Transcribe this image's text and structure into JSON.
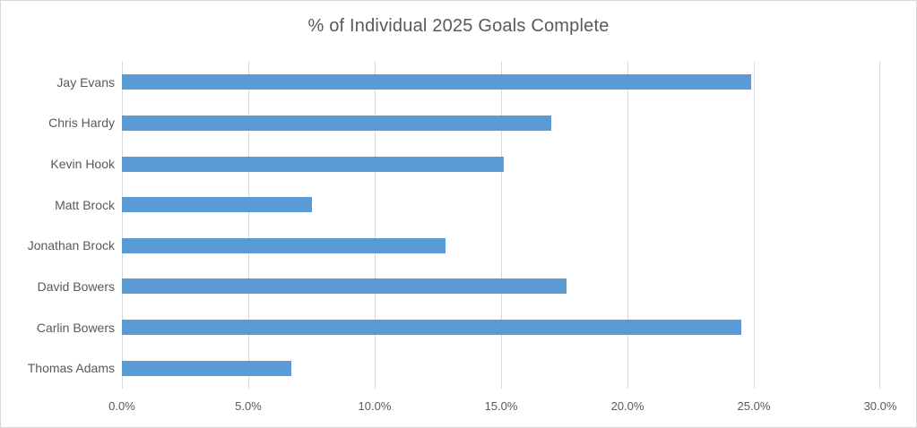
{
  "title": "% of Individual 2025 Goals Complete",
  "chart_data": {
    "type": "bar",
    "orientation": "horizontal",
    "title": "% of Individual 2025 Goals Complete",
    "categories": [
      "Jay Evans",
      "Chris Hardy",
      "Kevin Hook",
      "Matt Brock",
      "Jonathan Brock",
      "David Bowers",
      "Carlin Bowers",
      "Thomas Adams"
    ],
    "values": [
      24.9,
      17.0,
      15.1,
      7.5,
      12.8,
      17.6,
      24.5,
      6.7
    ],
    "value_unit": "%",
    "xlabel": "",
    "ylabel": "",
    "xlim": [
      0,
      30
    ],
    "x_ticks": [
      0,
      5,
      10,
      15,
      20,
      25,
      30
    ],
    "x_tick_labels": [
      "0.0%",
      "5.0%",
      "10.0%",
      "15.0%",
      "20.0%",
      "25.0%",
      "30.0%"
    ],
    "grid": true,
    "legend": false,
    "bar_color": "#5b9bd5",
    "text_color": "#595959",
    "gridline_color": "#d9d9d9"
  }
}
